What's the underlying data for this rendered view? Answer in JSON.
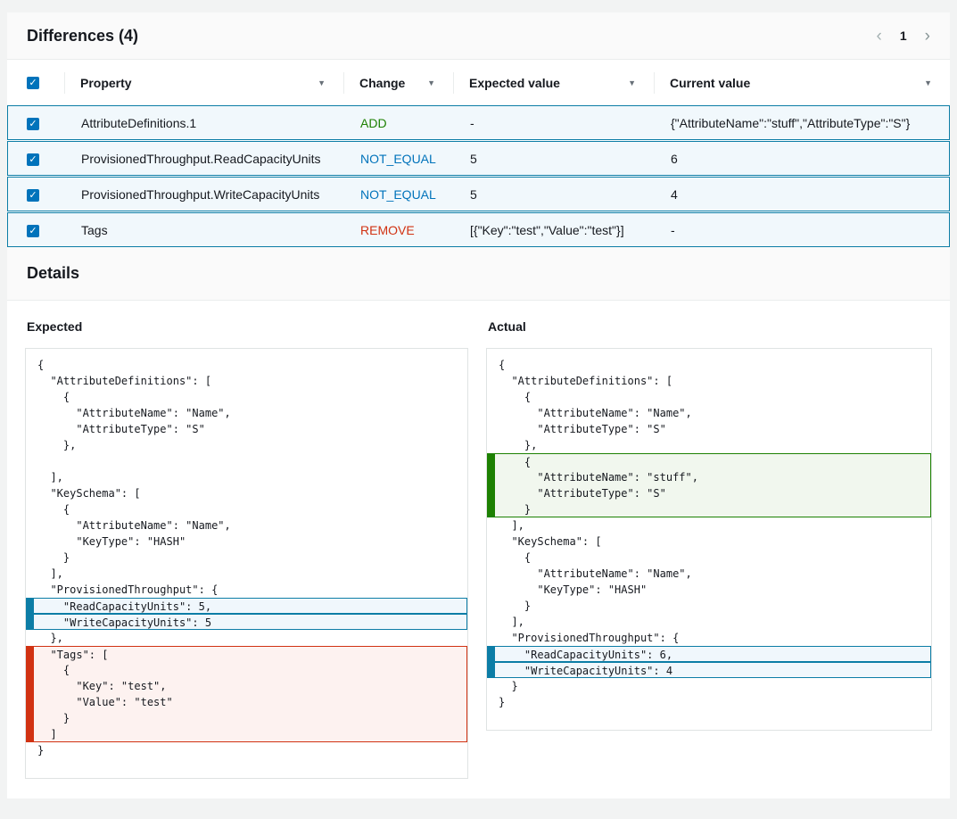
{
  "icons": {
    "check": "✓",
    "sort_arrow": "▼",
    "prev": "‹",
    "next": "›"
  },
  "colors": {
    "page_bg": "#f2f3f3",
    "card_bg": "#ffffff",
    "header_band_bg": "#fafafa",
    "divider": "#eaeded",
    "selected_row_bg": "#f1f8fc",
    "selected_row_border": "#0c7da6",
    "add_green": "#1d8102",
    "not_equal_blue": "#0073bb",
    "remove_red": "#d13212",
    "checkbox_blue": "#0073bb"
  },
  "differences": {
    "title": "Differences (4)",
    "pagination": {
      "current_page": "1"
    },
    "table": {
      "columns": [
        "Property",
        "Change",
        "Expected value",
        "Current value"
      ],
      "rows": [
        {
          "checked": true,
          "property": "AttributeDefinitions.1",
          "change": "ADD",
          "change_color": "#1d8102",
          "expected": "-",
          "current": "{\"AttributeName\":\"stuff\",\"AttributeType\":\"S\"}"
        },
        {
          "checked": true,
          "property": "ProvisionedThroughput.ReadCapacityUnits",
          "change": "NOT_EQUAL",
          "change_color": "#0073bb",
          "expected": "5",
          "current": "6"
        },
        {
          "checked": true,
          "property": "ProvisionedThroughput.WriteCapacityUnits",
          "change": "NOT_EQUAL",
          "change_color": "#0073bb",
          "expected": "5",
          "current": "4"
        },
        {
          "checked": true,
          "property": "Tags",
          "change": "REMOVE",
          "change_color": "#d13212",
          "expected": "[{\"Key\":\"test\",\"Value\":\"test\"}]",
          "current": "-"
        }
      ]
    }
  },
  "details": {
    "title": "Details",
    "expected": {
      "label": "Expected",
      "lines": [
        {
          "t": "{"
        },
        {
          "t": "  \"AttributeDefinitions\": ["
        },
        {
          "t": "    {"
        },
        {
          "t": "      \"AttributeName\": \"Name\","
        },
        {
          "t": "      \"AttributeType\": \"S\""
        },
        {
          "t": "    },"
        },
        {
          "t": ""
        },
        {
          "t": "  ],"
        },
        {
          "t": "  \"KeySchema\": ["
        },
        {
          "t": "    {"
        },
        {
          "t": "      \"AttributeName\": \"Name\","
        },
        {
          "t": "      \"KeyType\": \"HASH\""
        },
        {
          "t": "    }"
        },
        {
          "t": "  ],"
        },
        {
          "t": "  \"ProvisionedThroughput\": {"
        },
        {
          "t": "    \"ReadCapacityUnits\": 5,",
          "hl": "blue",
          "pos": "single"
        },
        {
          "t": "    \"WriteCapacityUnits\": 5",
          "hl": "blue",
          "pos": "single"
        },
        {
          "t": "  },"
        },
        {
          "t": "  \"Tags\": [",
          "hl": "red",
          "pos": "start"
        },
        {
          "t": "    {",
          "hl": "red",
          "pos": "mid"
        },
        {
          "t": "      \"Key\": \"test\",",
          "hl": "red",
          "pos": "mid"
        },
        {
          "t": "      \"Value\": \"test\"",
          "hl": "red",
          "pos": "mid"
        },
        {
          "t": "    }",
          "hl": "red",
          "pos": "mid"
        },
        {
          "t": "  ]",
          "hl": "red",
          "pos": "end"
        },
        {
          "t": "}"
        }
      ]
    },
    "actual": {
      "label": "Actual",
      "lines": [
        {
          "t": "{"
        },
        {
          "t": "  \"AttributeDefinitions\": ["
        },
        {
          "t": "    {"
        },
        {
          "t": "      \"AttributeName\": \"Name\","
        },
        {
          "t": "      \"AttributeType\": \"S\""
        },
        {
          "t": "    },"
        },
        {
          "t": "    {",
          "hl": "green",
          "pos": "start"
        },
        {
          "t": "      \"AttributeName\": \"stuff\",",
          "hl": "green",
          "pos": "mid"
        },
        {
          "t": "      \"AttributeType\": \"S\"",
          "hl": "green",
          "pos": "mid"
        },
        {
          "t": "    }",
          "hl": "green",
          "pos": "end"
        },
        {
          "t": "  ],"
        },
        {
          "t": "  \"KeySchema\": ["
        },
        {
          "t": "    {"
        },
        {
          "t": "      \"AttributeName\": \"Name\","
        },
        {
          "t": "      \"KeyType\": \"HASH\""
        },
        {
          "t": "    }"
        },
        {
          "t": "  ],"
        },
        {
          "t": "  \"ProvisionedThroughput\": {"
        },
        {
          "t": "    \"ReadCapacityUnits\": 6,",
          "hl": "blue",
          "pos": "single"
        },
        {
          "t": "    \"WriteCapacityUnits\": 4",
          "hl": "blue",
          "pos": "single"
        },
        {
          "t": "  }"
        },
        {
          "t": "}"
        }
      ]
    }
  }
}
